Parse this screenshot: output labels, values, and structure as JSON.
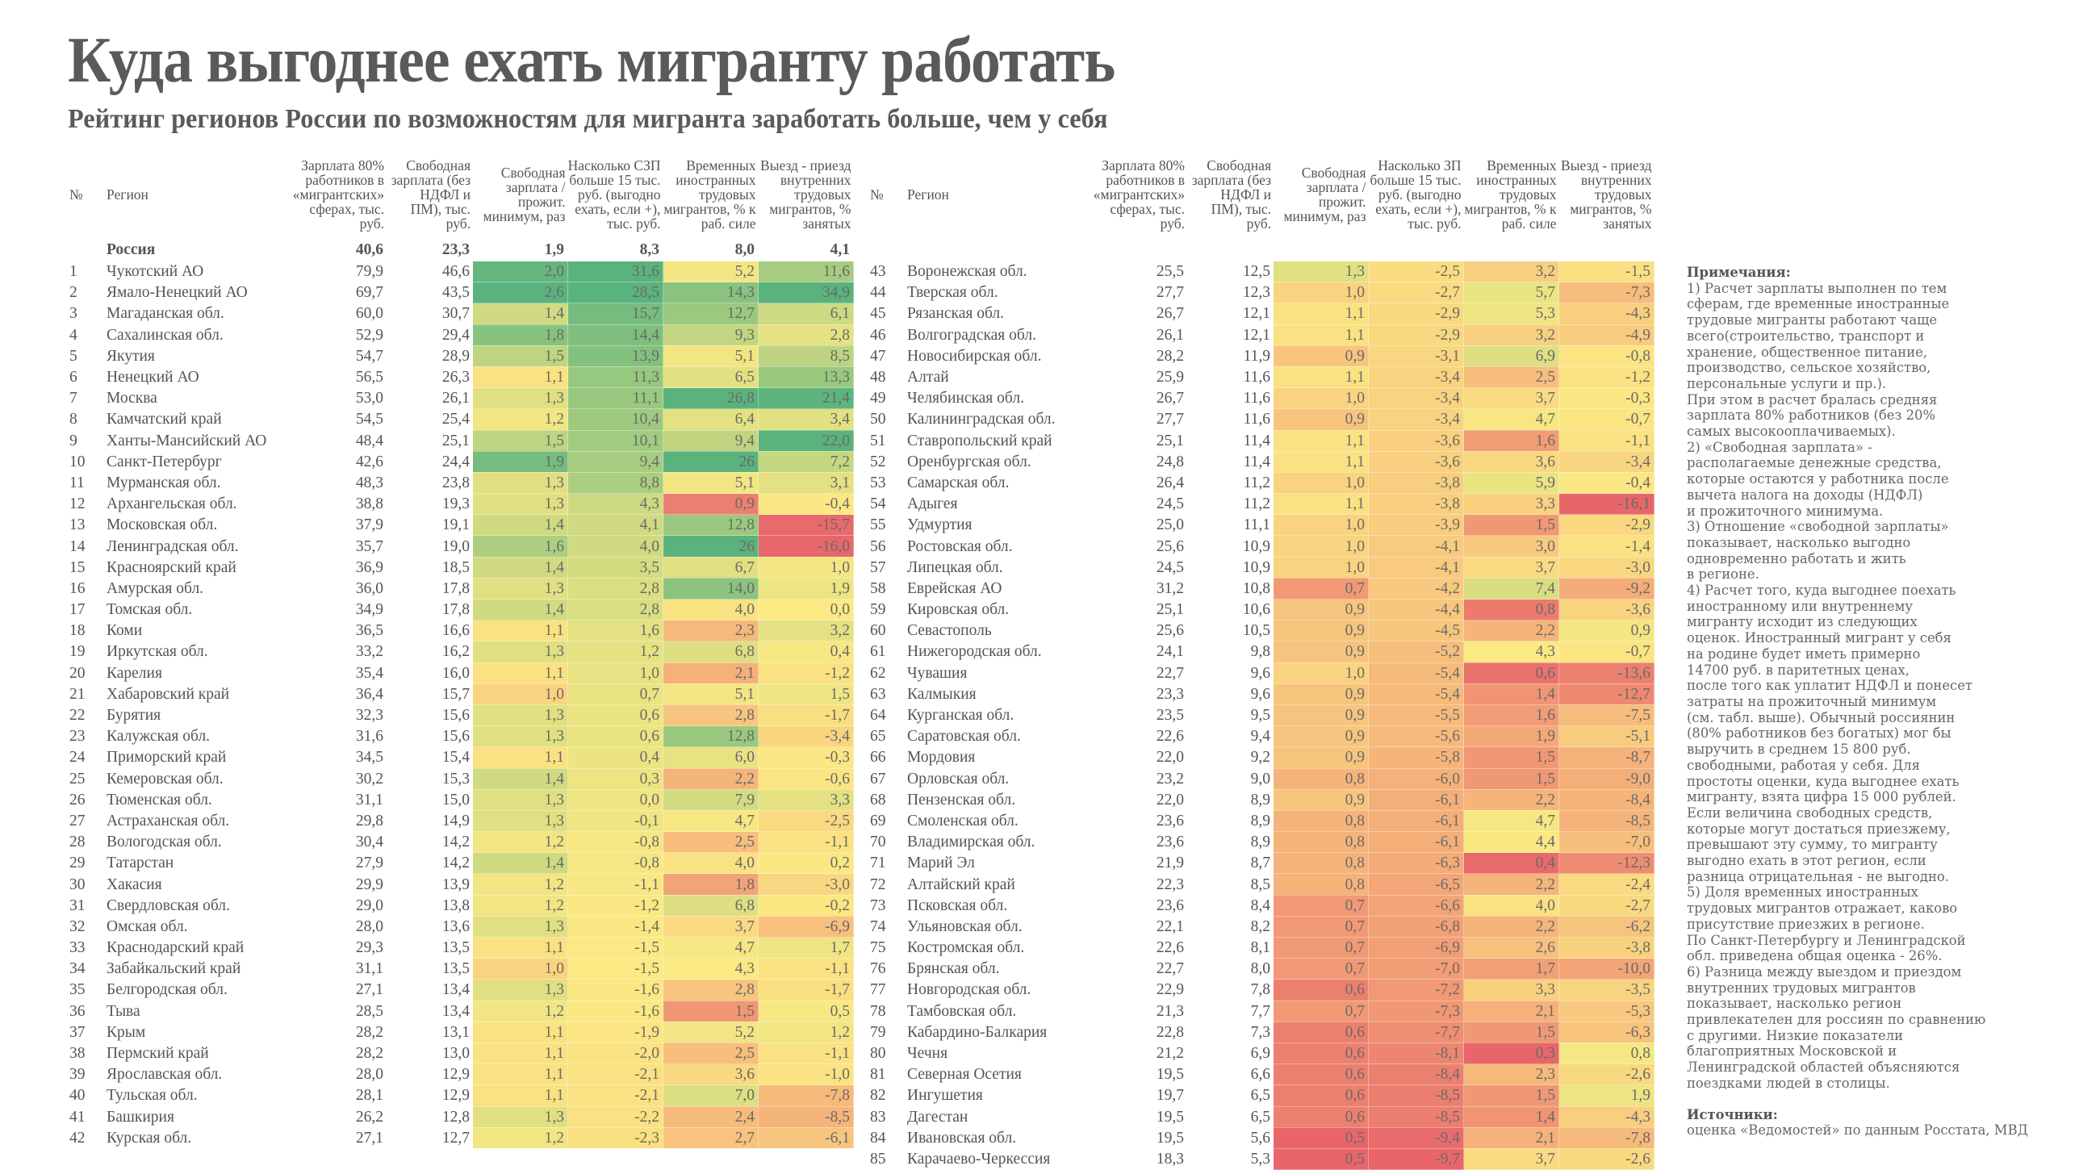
{
  "header": {
    "title": "Куда выгоднее ехать мигранту работать",
    "subtitle": "Рейтинг регионов России по возможностям для мигранта заработать больше, чем у себя"
  },
  "columns": {
    "num": "№",
    "region": "Регион",
    "salary": "Зарплата 80% работников в «мигрантских» сферах, тыс. руб.",
    "free_salary": "Свободная зарплата (без НДФЛ и ПМ), тыс. руб.",
    "ratio": "Свободная зарплата / прожит. минимум, раз",
    "diff_left": "Насколько СЗП больше 15 тыс. руб. (выгодно ехать, если +), тыс. руб.",
    "diff_right": "Насколько ЗП больше 15 тыс. руб. (выгодно ехать, если +), тыс. руб.",
    "foreign": "Временных иностранных трудовых мигрантов, % к раб. силе",
    "internal": "Выезд - приезд внутренних трудовых мигрантов, % занятых"
  },
  "colors": {
    "red": "#e8666a",
    "orange": "#f6b97b",
    "yellow": "#fbe983",
    "green": "#5ab37d"
  },
  "russia": {
    "region": "Россия",
    "salary": "40,6",
    "free_salary": "23,3",
    "ratio": "1,9",
    "diff": "8,3",
    "foreign": "8,0",
    "internal": "4,1"
  },
  "chart_data": {
    "type": "heatmap",
    "title": "Куда выгоднее ехать мигранту работать",
    "subtitle": "Рейтинг регионов России по возможностям для мигранта заработать больше, чем у себя",
    "fields": [
      "rank",
      "region",
      "salary",
      "free_salary",
      "ratio",
      "diff",
      "foreign",
      "internal"
    ],
    "heatmap_fields": [
      "ratio",
      "diff",
      "foreign",
      "internal"
    ],
    "color_scale": "red (low) → yellow → green (high), per column",
    "rows": [
      [
        1,
        "Чукотский АО",
        79.9,
        46.6,
        2.0,
        31.6,
        5.2,
        11.6
      ],
      [
        2,
        "Ямало-Ненецкий АО",
        69.7,
        43.5,
        2.6,
        28.5,
        14.3,
        34.9
      ],
      [
        3,
        "Магаданская обл.",
        60.0,
        30.7,
        1.4,
        15.7,
        12.7,
        6.1
      ],
      [
        4,
        "Сахалинская обл.",
        52.9,
        29.4,
        1.8,
        14.4,
        9.3,
        2.8
      ],
      [
        5,
        "Якутия",
        54.7,
        28.9,
        1.5,
        13.9,
        5.1,
        8.5
      ],
      [
        6,
        "Ненецкий АО",
        56.5,
        26.3,
        1.1,
        11.3,
        6.5,
        13.3
      ],
      [
        7,
        "Москва",
        53.0,
        26.1,
        1.3,
        11.1,
        26.8,
        21.4
      ],
      [
        8,
        "Камчатский край",
        54.5,
        25.4,
        1.2,
        10.4,
        6.4,
        3.4
      ],
      [
        9,
        "Ханты-Мансийский АО",
        48.4,
        25.1,
        1.5,
        10.1,
        9.4,
        22.0
      ],
      [
        10,
        "Санкт-Петербург",
        42.6,
        24.4,
        1.9,
        9.4,
        26,
        7.2
      ],
      [
        11,
        "Мурманская обл.",
        48.3,
        23.8,
        1.3,
        8.8,
        5.1,
        3.1
      ],
      [
        12,
        "Архангельская обл.",
        38.8,
        19.3,
        1.3,
        4.3,
        0.9,
        -0.4
      ],
      [
        13,
        "Московская обл.",
        37.9,
        19.1,
        1.4,
        4.1,
        12.8,
        -15.7
      ],
      [
        14,
        "Ленинградская обл.",
        35.7,
        19.0,
        1.6,
        4.0,
        26,
        -16.0
      ],
      [
        15,
        "Красноярский край",
        36.9,
        18.5,
        1.4,
        3.5,
        6.7,
        1.0
      ],
      [
        16,
        "Амурская обл.",
        36.0,
        17.8,
        1.3,
        2.8,
        14.0,
        1.9
      ],
      [
        17,
        "Томская обл.",
        34.9,
        17.8,
        1.4,
        2.8,
        4.0,
        0.0
      ],
      [
        18,
        "Коми",
        36.5,
        16.6,
        1.1,
        1.6,
        2.3,
        3.2
      ],
      [
        19,
        "Иркутская обл.",
        33.2,
        16.2,
        1.3,
        1.2,
        6.8,
        0.4
      ],
      [
        20,
        "Карелия",
        35.4,
        16.0,
        1.1,
        1.0,
        2.1,
        -1.2
      ],
      [
        21,
        "Хабаровский край",
        36.4,
        15.7,
        1.0,
        0.7,
        5.1,
        1.5
      ],
      [
        22,
        "Бурятия",
        32.3,
        15.6,
        1.3,
        0.6,
        2.8,
        -1.7
      ],
      [
        23,
        "Калужская обл.",
        31.6,
        15.6,
        1.3,
        0.6,
        12.8,
        -3.4
      ],
      [
        24,
        "Приморский край",
        34.5,
        15.4,
        1.1,
        0.4,
        6.0,
        -0.3
      ],
      [
        25,
        "Кемеровская обл.",
        30.2,
        15.3,
        1.4,
        0.3,
        2.2,
        -0.6
      ],
      [
        26,
        "Тюменская обл.",
        31.1,
        15.0,
        1.3,
        0.0,
        7.9,
        3.3
      ],
      [
        27,
        "Астраханская обл.",
        29.8,
        14.9,
        1.3,
        -0.1,
        4.7,
        -2.5
      ],
      [
        28,
        "Вологодская обл.",
        30.4,
        14.2,
        1.2,
        -0.8,
        2.5,
        -1.1
      ],
      [
        29,
        "Татарстан",
        27.9,
        14.2,
        1.4,
        -0.8,
        4.0,
        0.2
      ],
      [
        30,
        "Хакасия",
        29.9,
        13.9,
        1.2,
        -1.1,
        1.8,
        -3.0
      ],
      [
        31,
        "Свердловская обл.",
        29.0,
        13.8,
        1.2,
        -1.2,
        6.8,
        -0.2
      ],
      [
        32,
        "Омская обл.",
        28.0,
        13.6,
        1.3,
        -1.4,
        3.7,
        -6.9
      ],
      [
        33,
        "Краснодарский край",
        29.3,
        13.5,
        1.1,
        -1.5,
        4.7,
        1.7
      ],
      [
        34,
        "Забайкальский край",
        31.1,
        13.5,
        1.0,
        -1.5,
        4.3,
        -1.1
      ],
      [
        35,
        "Белгородская обл.",
        27.1,
        13.4,
        1.3,
        -1.6,
        2.8,
        -1.7
      ],
      [
        36,
        "Тыва",
        28.5,
        13.4,
        1.2,
        -1.6,
        1.5,
        0.5
      ],
      [
        37,
        "Крым",
        28.2,
        13.1,
        1.1,
        -1.9,
        5.2,
        1.2
      ],
      [
        38,
        "Пермский край",
        28.2,
        13.0,
        1.1,
        -2.0,
        2.5,
        -1.1
      ],
      [
        39,
        "Ярославская обл.",
        28.0,
        12.9,
        1.1,
        -2.1,
        3.6,
        -1.0
      ],
      [
        40,
        "Тульская обл.",
        28.1,
        12.9,
        1.1,
        -2.1,
        7.0,
        -7.8
      ],
      [
        41,
        "Башкирия",
        26.2,
        12.8,
        1.3,
        -2.2,
        2.4,
        -8.5
      ],
      [
        42,
        "Курская обл.",
        27.1,
        12.7,
        1.2,
        -2.3,
        2.7,
        -6.1
      ],
      [
        43,
        "Воронежская обл.",
        25.5,
        12.5,
        1.3,
        -2.5,
        3.2,
        -1.5
      ],
      [
        44,
        "Тверская обл.",
        27.7,
        12.3,
        1.0,
        -2.7,
        5.7,
        -7.3
      ],
      [
        45,
        "Рязанская обл.",
        26.7,
        12.1,
        1.1,
        -2.9,
        5.3,
        -4.3
      ],
      [
        46,
        "Волгоградская обл.",
        26.1,
        12.1,
        1.1,
        -2.9,
        3.2,
        -4.9
      ],
      [
        47,
        "Новосибирская обл.",
        28.2,
        11.9,
        0.9,
        -3.1,
        6.9,
        -0.8
      ],
      [
        48,
        "Алтай",
        25.9,
        11.6,
        1.1,
        -3.4,
        2.5,
        -1.2
      ],
      [
        49,
        "Челябинская обл.",
        26.7,
        11.6,
        1.0,
        -3.4,
        3.7,
        -0.3
      ],
      [
        50,
        "Калининградская обл.",
        27.7,
        11.6,
        0.9,
        -3.4,
        4.7,
        -0.7
      ],
      [
        51,
        "Ставропольский край",
        25.1,
        11.4,
        1.1,
        -3.6,
        1.6,
        -1.1
      ],
      [
        52,
        "Оренбургская обл.",
        24.8,
        11.4,
        1.1,
        -3.6,
        3.6,
        -3.4
      ],
      [
        53,
        "Самарская обл.",
        26.4,
        11.2,
        1.0,
        -3.8,
        5.9,
        -0.4
      ],
      [
        54,
        "Адыгея",
        24.5,
        11.2,
        1.1,
        -3.8,
        3.3,
        -16.1
      ],
      [
        55,
        "Удмуртия",
        25.0,
        11.1,
        1.0,
        -3.9,
        1.5,
        -2.9
      ],
      [
        56,
        "Ростовская обл.",
        25.6,
        10.9,
        1.0,
        -4.1,
        3.0,
        -1.4
      ],
      [
        57,
        "Липецкая обл.",
        24.5,
        10.9,
        1.0,
        -4.1,
        3.7,
        -3.0
      ],
      [
        58,
        "Еврейская АО",
        31.2,
        10.8,
        0.7,
        -4.2,
        7.4,
        -9.2
      ],
      [
        59,
        "Кировская обл.",
        25.1,
        10.6,
        0.9,
        -4.4,
        0.8,
        -3.6
      ],
      [
        60,
        "Севастополь",
        25.6,
        10.5,
        0.9,
        -4.5,
        2.2,
        0.9
      ],
      [
        61,
        "Нижегородская обл.",
        24.1,
        9.8,
        0.9,
        -5.2,
        4.3,
        -0.7
      ],
      [
        62,
        "Чувашия",
        22.7,
        9.6,
        1.0,
        -5.4,
        0.6,
        -13.6
      ],
      [
        63,
        "Калмыкия",
        23.3,
        9.6,
        0.9,
        -5.4,
        1.4,
        -12.7
      ],
      [
        64,
        "Курганская обл.",
        23.5,
        9.5,
        0.9,
        -5.5,
        1.6,
        -7.5
      ],
      [
        65,
        "Саратовская обл.",
        22.6,
        9.4,
        0.9,
        -5.6,
        1.9,
        -5.1
      ],
      [
        66,
        "Мордовия",
        22.0,
        9.2,
        0.9,
        -5.8,
        1.5,
        -8.7
      ],
      [
        67,
        "Орловская обл.",
        23.2,
        9.0,
        0.8,
        -6.0,
        1.5,
        -9.0
      ],
      [
        68,
        "Пензенская обл.",
        22.0,
        8.9,
        0.9,
        -6.1,
        2.2,
        -8.4
      ],
      [
        69,
        "Смоленская обл.",
        23.6,
        8.9,
        0.8,
        -6.1,
        4.7,
        -8.5
      ],
      [
        70,
        "Владимирская обл.",
        23.6,
        8.9,
        0.8,
        -6.1,
        4.4,
        -7.0
      ],
      [
        71,
        "Марий Эл",
        21.9,
        8.7,
        0.8,
        -6.3,
        0.4,
        -12.3
      ],
      [
        72,
        "Алтайский край",
        22.3,
        8.5,
        0.8,
        -6.5,
        2.2,
        -2.4
      ],
      [
        73,
        "Псковская обл.",
        23.6,
        8.4,
        0.7,
        -6.6,
        4.0,
        -2.7
      ],
      [
        74,
        "Ульяновская обл.",
        22.1,
        8.2,
        0.7,
        -6.8,
        2.2,
        -6.2
      ],
      [
        75,
        "Костромская обл.",
        22.6,
        8.1,
        0.7,
        -6.9,
        2.6,
        -3.8
      ],
      [
        76,
        "Брянская обл.",
        22.7,
        8.0,
        0.7,
        -7.0,
        1.7,
        -10.0
      ],
      [
        77,
        "Новгородская обл.",
        22.9,
        7.8,
        0.6,
        -7.2,
        3.3,
        -3.5
      ],
      [
        78,
        "Тамбовская обл.",
        21.3,
        7.7,
        0.7,
        -7.3,
        2.1,
        -5.3
      ],
      [
        79,
        "Кабардино-Балкария",
        22.8,
        7.3,
        0.6,
        -7.7,
        1.5,
        -6.3
      ],
      [
        80,
        "Чечня",
        21.2,
        6.9,
        0.6,
        -8.1,
        0.3,
        0.8
      ],
      [
        81,
        "Северная Осетия",
        19.5,
        6.6,
        0.6,
        -8.4,
        2.3,
        -2.6
      ],
      [
        82,
        "Ингушетия",
        19.7,
        6.5,
        0.6,
        -8.5,
        1.5,
        1.9
      ],
      [
        83,
        "Дагестан",
        19.5,
        6.5,
        0.6,
        -8.5,
        1.4,
        -4.3
      ],
      [
        84,
        "Ивановская обл.",
        19.5,
        5.6,
        0.5,
        -9.4,
        2.1,
        -7.8
      ],
      [
        85,
        "Карачаево-Черкессия",
        18.3,
        5.3,
        0.5,
        -9.7,
        3.7,
        -2.6
      ]
    ]
  },
  "notes": {
    "heading": "Примечания:",
    "text": "1) Расчет зарплаты выполнен по тем\nсферам, где временные иностранные\nтрудовые мигранты работают чаще\nвсего(строительство, транспорт и\nхранение, общественное питание,\nпроизводство, сельское хозяйство,\nперсональные услуги и пр.).\nПри этом в расчет бралась средняя\nзарплата 80% работников (без 20%\nсамых высокооплачиваемых).\n2) «Свободная зарплата» -\nрасполагаемые денежные средства,\nкоторые остаются у работника после\nвычета налога на доходы (НДФЛ)\nи прожиточного минимума.\n3) Отношение «свободной зарплаты»\nпоказывает, насколько выгодно\nодновременно работать и жить\nв регионе.\n4) Расчет того, куда выгоднее поехать\nиностранному или внутреннему\nмигранту исходит из следующих\nоценок. Иностранный мигрант у себя\nна родине будет иметь примерно\n14700 руб. в паритетных ценах,\nпосле того как уплатит НДФЛ и понесет\nзатраты на прожиточный минимум\n(см. табл. выше). Обычный россиянин\n(80% работников без богатых) мог бы\nвыручить в среднем 15 800 руб.\nсвободными, работая у себя. Для\nпростоты оценки, куда выгоднее ехать\nмигранту, взята цифра 15 000 рублей.\nЕсли величина свободных средств,\nкоторые могут достаться приезжему,\nпревышают эту сумму, то мигранту\nвыгодно ехать в этот регион, если\nразница отрицательная - не выгодно.\n5) Доля временных иностранных\nтрудовых мигрантов отражает, каково\nприсутствие приезжих в регионе.\nПо Санкт-Петербургу и Ленинградской\nобл. приведена общая оценка - 26%.\n6) Разница между выездом и приездом\nвнутренних трудовых мигрантов\nпоказывает, насколько регион\nпривлекателен для россиян по сравнению\nс другими. Низкие показатели\nблагоприятных Московской и\nЛенинградской областей объясняются\nпоездками людей в столицы.",
    "sources_heading": "Источники:",
    "sources_text": "оценка «Ведомостей» по данным Росстата, МВД"
  }
}
